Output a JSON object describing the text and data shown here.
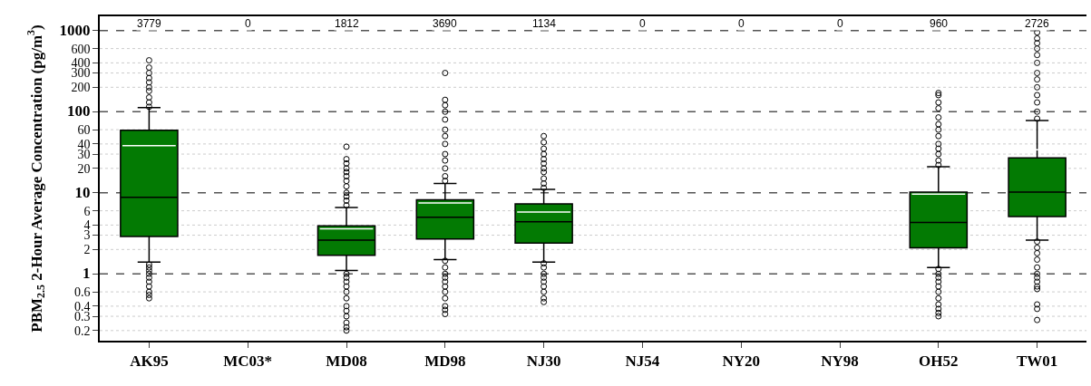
{
  "chart_data": {
    "type": "box",
    "ylabel": "PBM$_{2.5}$ 2-Hour Average Concentration (pg/m$^{3}$)",
    "categories": [
      "AK95",
      "MC03*",
      "MD08",
      "MD98",
      "NJ30",
      "NJ54",
      "NY20",
      "NY98",
      "OH52",
      "TW01"
    ],
    "series": [
      {
        "color": "#037a03",
        "boxes": [
          {
            "low": 1.4,
            "q1": 2.9,
            "median": 8.8,
            "q3": 59,
            "high": 112,
            "mean": 38,
            "outliers": [
              0.5,
              0.55,
              0.6,
              0.7,
              0.8,
              0.9,
              1.0,
              1.1,
              1.2,
              1.3,
              115,
              130,
              150,
              180,
              200,
              230,
              260,
              300,
              350,
              430
            ]
          },
          null,
          {
            "low": 1.1,
            "q1": 1.7,
            "median": 2.6,
            "q3": 3.9,
            "high": 6.6,
            "mean": 3.6,
            "outliers": [
              0.2,
              0.22,
              0.25,
              0.3,
              0.35,
              0.4,
              0.5,
              0.6,
              0.7,
              0.8,
              0.9,
              1.0,
              7,
              8,
              9,
              10,
              12,
              14,
              16,
              18,
              20,
              23,
              26,
              37
            ]
          },
          {
            "low": 1.5,
            "q1": 2.7,
            "median": 5.0,
            "q3": 8.2,
            "high": 13,
            "mean": 7.5,
            "outliers": [
              0.32,
              0.36,
              0.4,
              0.5,
              0.6,
              0.7,
              0.8,
              0.9,
              1.0,
              1.2,
              1.45,
              14,
              16,
              20,
              25,
              30,
              40,
              50,
              60,
              80,
              100,
              120,
              140,
              300
            ]
          },
          {
            "low": 1.4,
            "q1": 2.4,
            "median": 4.4,
            "q3": 7.3,
            "high": 11,
            "mean": 5.8,
            "outliers": [
              0.45,
              0.5,
              0.6,
              0.7,
              0.8,
              0.9,
              1.0,
              1.2,
              1.35,
              11.5,
              13,
              15,
              18,
              20,
              23,
              26,
              30,
              35,
              42,
              50
            ]
          },
          null,
          null,
          null,
          {
            "low": 1.2,
            "q1": 2.1,
            "median": 4.3,
            "q3": 10.2,
            "high": 21,
            "mean": 9.6,
            "outliers": [
              0.3,
              0.33,
              0.37,
              0.42,
              0.5,
              0.6,
              0.7,
              0.8,
              0.9,
              1.0,
              1.15,
              22,
              25,
              30,
              35,
              40,
              50,
              60,
              70,
              85,
              110,
              130,
              160,
              170
            ]
          },
          {
            "low": 2.6,
            "q1": 5.1,
            "median": 10.2,
            "q3": 27,
            "high": 78,
            "mean": 34,
            "outliers": [
              0.27,
              0.37,
              0.42,
              0.65,
              0.7,
              0.8,
              0.9,
              1.0,
              1.2,
              1.5,
              1.8,
              2.1,
              2.5,
              82,
              100,
              130,
              160,
              200,
              250,
              300,
              400,
              500,
              600,
              700,
              800,
              950
            ]
          }
        ]
      }
    ],
    "ylim": [
      0.15,
      1500
    ],
    "log": true,
    "yticks": [
      0.2,
      0.3,
      0.4,
      0.6,
      1,
      2,
      3,
      4,
      6,
      10,
      20,
      30,
      40,
      60,
      100,
      200,
      300,
      400,
      600,
      1000
    ],
    "grid": "y",
    "marker": "circle",
    "annotations": [
      "3779",
      "0",
      "1812",
      "3690",
      "1134",
      "0",
      "0",
      "0",
      "960",
      "2726"
    ]
  }
}
